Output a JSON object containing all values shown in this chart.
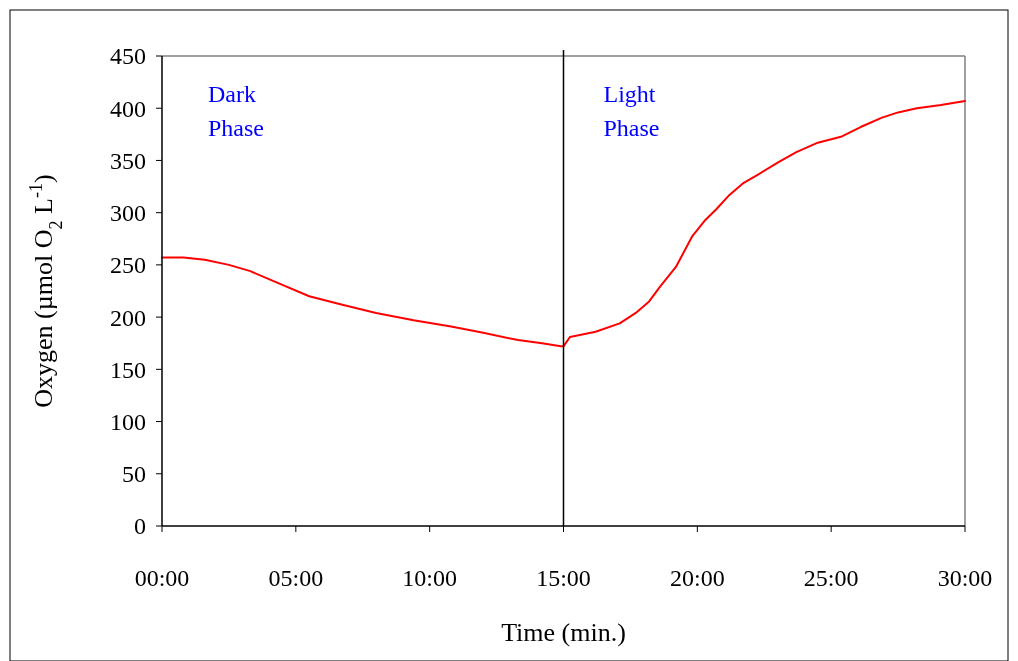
{
  "chart_data": {
    "type": "line",
    "xlabel": "Time (min.)",
    "ylabel": "Oxygen (µmol O$_{2}$ L$^{-1}$)",
    "xlim": [
      0,
      30
    ],
    "ylim": [
      0,
      450
    ],
    "xticks": [
      {
        "value": 0,
        "label": "00:00"
      },
      {
        "value": 5,
        "label": "05:00"
      },
      {
        "value": 10,
        "label": "10:00"
      },
      {
        "value": 15,
        "label": "15:00"
      },
      {
        "value": 20,
        "label": "20:00"
      },
      {
        "value": 25,
        "label": "25:00"
      },
      {
        "value": 30,
        "label": "30:00"
      }
    ],
    "yticks": [
      0,
      50,
      100,
      150,
      200,
      250,
      300,
      350,
      400,
      450
    ],
    "grid": false,
    "marker": "none",
    "line_style": "solid",
    "x": [
      0,
      0.8,
      1.6,
      2.5,
      3.3,
      4.3,
      5.5,
      6.7,
      8.0,
      9.4,
      10.8,
      12.0,
      13.3,
      14.2,
      14.9,
      15.0,
      15.24,
      16.2,
      17.1,
      17.7,
      18.2,
      18.6,
      19.2,
      19.8,
      20.3,
      20.7,
      21.2,
      21.7,
      22.3,
      23.0,
      23.7,
      24.5,
      25.4,
      26.1,
      26.9,
      27.5,
      28.2,
      29.1,
      30.0
    ],
    "series": [
      {
        "color": "#ff0000",
        "values": [
          257,
          257,
          255,
          250,
          244,
          233,
          220,
          212,
          204,
          197,
          191,
          185,
          178,
          175,
          172,
          172,
          181,
          186,
          194,
          204,
          215,
          229,
          248,
          277,
          293,
          303,
          317,
          328,
          337,
          348,
          358,
          367,
          373,
          382,
          391,
          396,
          400,
          403,
          407
        ]
      }
    ],
    "ref_lines": [
      {
        "axis": "x",
        "value": 15,
        "color": "#000000"
      }
    ],
    "annotations": [
      "Dark Phase",
      "Light Phase"
    ]
  }
}
